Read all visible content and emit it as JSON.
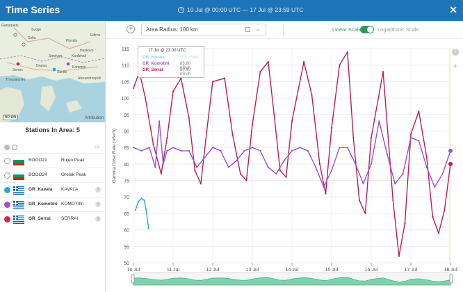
{
  "window": {
    "title": "Time Series",
    "time_range": "10 Jul @ 00:00 UTC  —  17 Jul @ 23:59 UTC",
    "close_icon": "close-icon"
  },
  "map": {
    "scale_label": "50 km",
    "attribution": "Attribution",
    "labels": [
      "Ganaquets",
      "Svoge",
      "Sofia",
      "Plovdiv",
      "Haskovo",
      "Kardzhali",
      "Smolyan",
      "Drama",
      "Serres",
      "Thessaloniki",
      "Xanthi",
      "Komotini",
      "Alexandroupoli",
      "Edirne"
    ]
  },
  "stations": {
    "title": "Stations In Area: 5",
    "clear_label": "ⓧ",
    "items": [
      {
        "code": "BOOO21",
        "name": "Rujen Peak",
        "country": "BG",
        "active": false,
        "color": "#ffffff"
      },
      {
        "code": "BOOO24",
        "name": "Orelak Peak",
        "country": "BG",
        "active": false,
        "color": "#ffffff"
      },
      {
        "code": "GR_Kavala",
        "name": "KAVALA",
        "country": "GR",
        "active": true,
        "color": "#29a6d9"
      },
      {
        "code": "GR_Komotini",
        "name": "KOMOTINI",
        "country": "GR",
        "active": true,
        "color": "#9b4fd6"
      },
      {
        "code": "GR_Serrai",
        "name": "SERRAI",
        "country": "GR",
        "active": true,
        "color": "#d0264d"
      }
    ]
  },
  "toolbar": {
    "area_radius": "Area Radius: 100 km",
    "linear_scale": "Linear Scale",
    "log_scale": "Logarithmic Scale",
    "toggle_on": true
  },
  "tooltip": {
    "header": "17 Jul @ 23:00 UTC",
    "rows": [
      {
        "name": "GR_Kavala",
        "value": "N/A nSv/h"
      },
      {
        "name": "GR_Komotini",
        "value": "83.80 nSv/h"
      },
      {
        "name": "GR_Serrai",
        "value": "80.40 nSv/h"
      }
    ]
  },
  "chart_data": {
    "type": "line",
    "ylabel": "Gamma Dose Rate (nSv/h)",
    "xlabel": "",
    "ylim": [
      50,
      115
    ],
    "yticks": [
      50,
      55,
      60,
      65,
      70,
      75,
      80,
      85,
      90,
      95,
      100,
      105,
      110,
      115
    ],
    "xlim": [
      0,
      8
    ],
    "xticks": [
      0,
      1,
      2,
      3,
      4,
      5,
      6,
      7,
      8
    ],
    "xtick_labels": [
      "10 Jul",
      "11 Jul",
      "12 Jul",
      "13 Jul",
      "14 Jul",
      "15 Jul",
      "16 Jul",
      "17 Jul",
      "18 Jul"
    ],
    "grid": true,
    "series": [
      {
        "name": "GR_Serrai",
        "color": "#c2185b",
        "x": [
          0.0,
          0.15,
          0.3,
          0.5,
          0.7,
          0.85,
          1.0,
          1.2,
          1.4,
          1.55,
          1.7,
          1.85,
          2.0,
          2.3,
          2.5,
          2.7,
          2.85,
          3.0,
          3.2,
          3.4,
          3.55,
          3.7,
          3.85,
          4.0,
          4.3,
          4.5,
          4.7,
          4.85,
          5.0,
          5.2,
          5.4,
          5.55,
          5.7,
          5.85,
          6.0,
          6.3,
          6.55,
          6.7,
          6.85,
          7.0,
          7.2,
          7.4,
          7.55,
          7.7,
          7.85,
          8.0
        ],
        "y": [
          103,
          108,
          100,
          86,
          77,
          88,
          102,
          106,
          94,
          78,
          74,
          90,
          105,
          106,
          89,
          77,
          75,
          92,
          108,
          111,
          95,
          78,
          76,
          93,
          111,
          101,
          80,
          71,
          91,
          110,
          114,
          88,
          69,
          65,
          88,
          108,
          69,
          52,
          62,
          89,
          96,
          82,
          64,
          59,
          66,
          80
        ]
      },
      {
        "name": "GR_Komotini",
        "color": "#9b4fd6",
        "x": [
          0.0,
          0.2,
          0.4,
          0.55,
          0.65,
          0.75,
          0.85,
          1.0,
          1.2,
          1.4,
          1.6,
          1.8,
          2.0,
          2.2,
          2.4,
          2.6,
          2.8,
          3.0,
          3.2,
          3.4,
          3.6,
          3.8,
          4.0,
          4.2,
          4.4,
          4.6,
          4.8,
          5.0,
          5.2,
          5.4,
          5.6,
          5.8,
          6.0,
          6.2,
          6.4,
          6.6,
          6.8,
          7.0,
          7.2,
          7.4,
          7.6,
          7.8,
          8.0
        ],
        "y": [
          85,
          84,
          85,
          79,
          93,
          80,
          84,
          85,
          84,
          84,
          79,
          82,
          85,
          84,
          79,
          81,
          84,
          85,
          84,
          79,
          77,
          81,
          84,
          85,
          84,
          79,
          73,
          78,
          85,
          85,
          80,
          74,
          80,
          93,
          83,
          74,
          77,
          88,
          87,
          79,
          73,
          77,
          84
        ]
      },
      {
        "name": "GR_Kavala",
        "color": "#29a6d9",
        "x": [
          0.05,
          0.12,
          0.2,
          0.27,
          0.32,
          0.38
        ],
        "y": [
          66,
          68.5,
          69.5,
          69,
          66,
          60.5
        ]
      }
    ]
  }
}
